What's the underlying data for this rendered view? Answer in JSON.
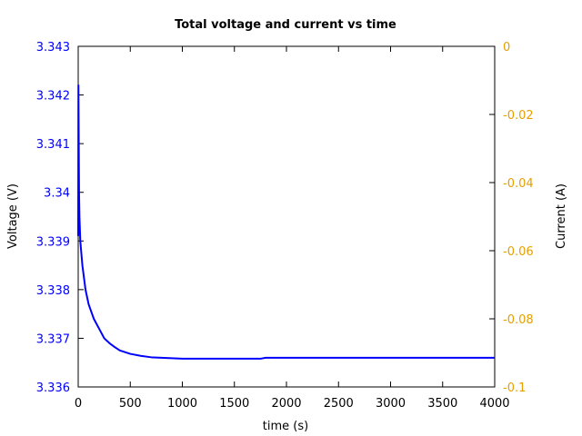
{
  "chart_data": {
    "type": "line",
    "title": "Total voltage and current vs time",
    "xlabel": "time (s)",
    "ylabel_left": "Voltage (V)",
    "ylabel_right": "Current (A)",
    "xlim": [
      0,
      4000
    ],
    "ylim_left": [
      3.336,
      3.343
    ],
    "ylim_right": [
      -0.1,
      0
    ],
    "grid": false,
    "legend": "none",
    "x_ticks": [
      "0",
      "500",
      "1000",
      "1500",
      "2000",
      "2500",
      "3000",
      "3500",
      "4000"
    ],
    "y_left_ticks": [
      "3.343",
      "3.342",
      "3.341",
      "3.34",
      "3.339",
      "3.338",
      "3.337",
      "3.336"
    ],
    "y_right_ticks": [
      "0",
      "-0.02",
      "-0.04",
      "-0.06",
      "-0.08",
      "-0.1"
    ],
    "colors": {
      "voltage": "#0000ff",
      "current_axis": "#e69f00",
      "axes": "#000000"
    },
    "series": [
      {
        "axis": "left",
        "x": [
          0,
          2,
          5,
          8,
          12,
          20,
          40,
          70,
          100,
          150,
          200,
          250,
          300,
          350,
          400,
          500,
          600,
          700,
          800,
          900,
          1000,
          1200,
          1400,
          1600,
          1750,
          1800,
          2000,
          2500,
          3000,
          3500,
          4000
        ],
        "values": [
          3.3391,
          3.3422,
          3.3411,
          3.34,
          3.3395,
          3.339,
          3.3385,
          3.338,
          3.3377,
          3.3374,
          3.3372,
          3.337,
          3.3369,
          3.33682,
          3.33675,
          3.33668,
          3.33664,
          3.33661,
          3.3366,
          3.33659,
          3.33658,
          3.33658,
          3.33658,
          3.33658,
          3.33658,
          3.3366,
          3.3366,
          3.3366,
          3.3366,
          3.3366,
          3.3366
        ]
      }
    ]
  }
}
